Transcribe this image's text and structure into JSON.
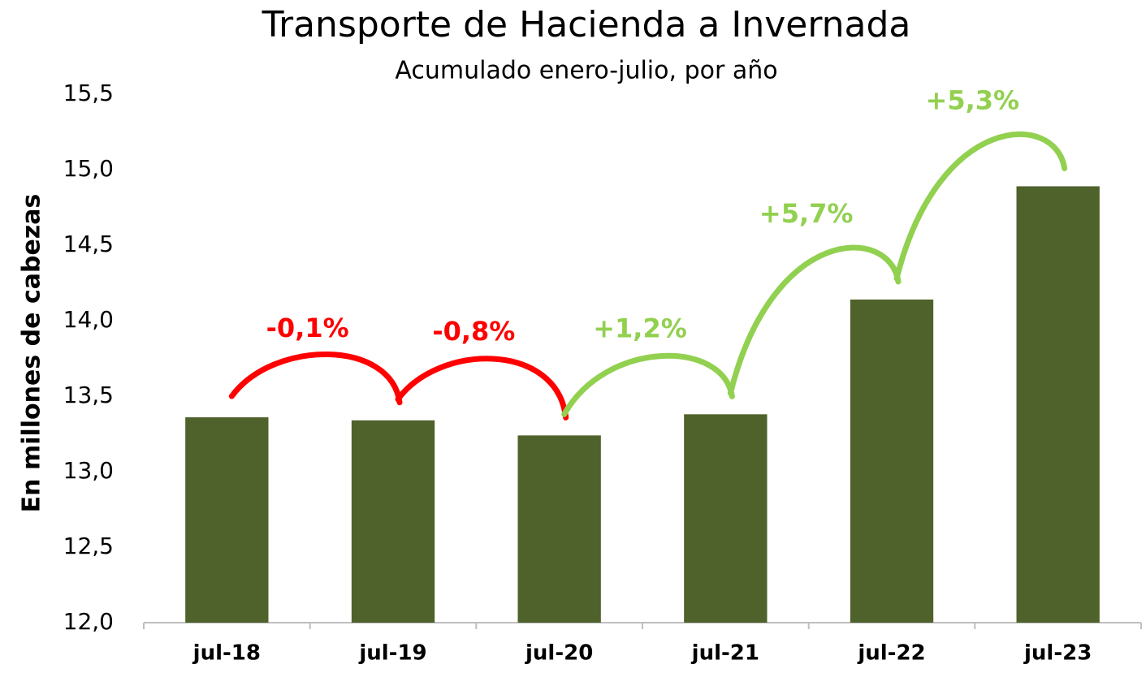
{
  "chart_data": {
    "type": "bar",
    "title": "Transporte de Hacienda a Invernada",
    "subtitle": "Acumulado enero-julio, por año",
    "y_label": "En millones de cabezas",
    "categories": [
      "jul-18",
      "jul-19",
      "jul-20",
      "jul-21",
      "jul-22",
      "jul-23"
    ],
    "values": [
      13.36,
      13.34,
      13.24,
      13.38,
      14.14,
      14.89
    ],
    "color": "#4f622b",
    "ylim": [
      12.0,
      15.5
    ],
    "yticks": [
      {
        "value": 12.0,
        "label": "12,0"
      },
      {
        "value": 12.5,
        "label": "12,5"
      },
      {
        "value": 13.0,
        "label": "13,0"
      },
      {
        "value": 13.5,
        "label": "13,5"
      },
      {
        "value": 14.0,
        "label": "14,0"
      },
      {
        "value": 14.5,
        "label": "14,5"
      },
      {
        "value": 15.0,
        "label": "15,0"
      },
      {
        "value": 15.5,
        "label": "15,5"
      }
    ],
    "grid": false,
    "annotations": [
      {
        "text": "-0,1%",
        "color": "#ff0000"
      },
      {
        "text": "-0,8%",
        "color": "#ff0000"
      },
      {
        "text": "+1,2%",
        "color": "#92d050"
      },
      {
        "text": "+5,7%",
        "color": "#92d050"
      },
      {
        "text": "+5,3%",
        "color": "#92d050"
      }
    ]
  }
}
